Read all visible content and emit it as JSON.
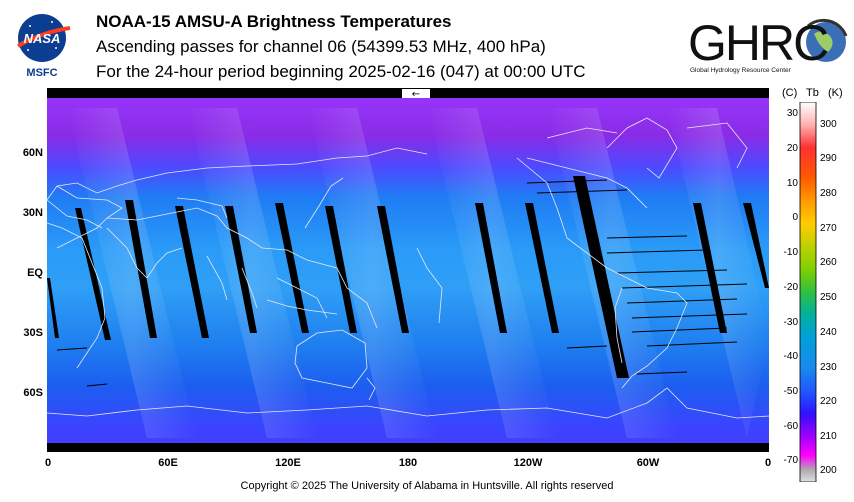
{
  "header": {
    "title": "NOAA-15 AMSU-A Brightness Temperatures",
    "subtitle": "Ascending passes for channel 06 (54399.53 MHz, 400 hPa)",
    "period": "For the 24-hour period beginning 2025-02-16 (047) at 00:00 UTC"
  },
  "logos": {
    "nasa_label": "NASA",
    "nasa_sub": "MSFC",
    "ghrc_label": "GHRC",
    "ghrc_sub": "Global Hydrology Resource Center"
  },
  "map": {
    "direction_arrow": "←",
    "lat_labels": [
      "60N",
      "30N",
      "EQ",
      "30S",
      "60S"
    ],
    "lon_labels": [
      "0",
      "60E",
      "120E",
      "180",
      "120W",
      "60W",
      "0"
    ]
  },
  "colorbar": {
    "header_c": "(C)",
    "header_tb": "Tb",
    "header_k": "(K)",
    "celsius_ticks": [
      "30",
      "20",
      "10",
      "0",
      "-10",
      "-20",
      "-30",
      "-40",
      "-50",
      "-60",
      "-70"
    ],
    "kelvin_ticks": [
      "300",
      "290",
      "280",
      "270",
      "260",
      "250",
      "240",
      "230",
      "220",
      "210",
      "200"
    ]
  },
  "footer": {
    "copyright": "Copyright © 2025 The University of Alabama in Huntsville.  All rights reserved"
  }
}
